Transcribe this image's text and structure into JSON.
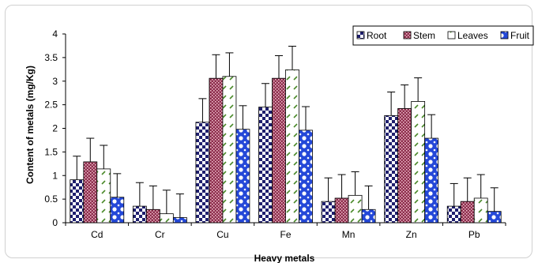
{
  "chart_data": {
    "type": "bar",
    "title": "",
    "xlabel": "Heavy metals",
    "ylabel": "Content of metals (mg/Kg)",
    "ylim": [
      0,
      4
    ],
    "yticks": [
      "0",
      "0.5",
      "1",
      "1.5",
      "2",
      "2.5",
      "3",
      "3.5",
      "4"
    ],
    "categories": [
      "Cd",
      "Cr",
      "Cu",
      "Fe",
      "Mn",
      "Zn",
      "Pb"
    ],
    "series": [
      {
        "name": "Root",
        "pattern": "checker-navy",
        "values": [
          0.91,
          0.35,
          2.13,
          2.45,
          0.45,
          2.27,
          0.35
        ],
        "errors": [
          0.5,
          0.5,
          0.5,
          0.5,
          0.5,
          0.5,
          0.48
        ]
      },
      {
        "name": "Stem",
        "pattern": "dots-maroon",
        "values": [
          1.29,
          0.28,
          3.06,
          3.06,
          0.52,
          2.42,
          0.45
        ],
        "errors": [
          0.5,
          0.5,
          0.5,
          0.48,
          0.5,
          0.5,
          0.5
        ]
      },
      {
        "name": "Leaves",
        "pattern": "dash-green",
        "values": [
          1.14,
          0.19,
          3.1,
          3.24,
          0.58,
          2.57,
          0.52
        ],
        "errors": [
          0.5,
          0.5,
          0.5,
          0.5,
          0.5,
          0.5,
          0.5
        ]
      },
      {
        "name": "Fruit",
        "pattern": "circles-blue",
        "values": [
          0.54,
          0.11,
          1.98,
          1.96,
          0.28,
          1.79,
          0.24
        ],
        "errors": [
          0.5,
          0.5,
          0.5,
          0.5,
          0.5,
          0.5,
          0.5
        ]
      }
    ],
    "legend_position": "top-right",
    "grid": false,
    "error_bars": "upper"
  }
}
